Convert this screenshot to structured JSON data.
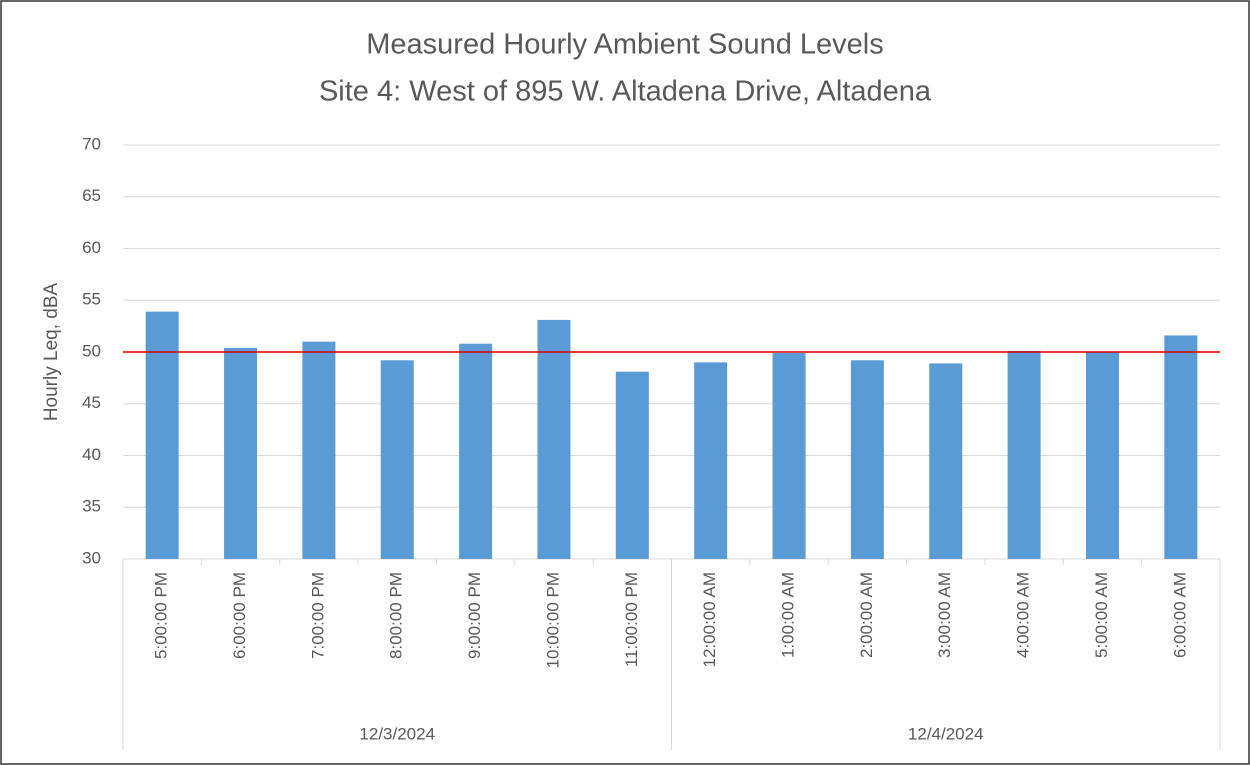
{
  "chart_data": {
    "type": "bar",
    "title": "Measured Hourly Ambient Sound Levels",
    "subtitle": "Site 4: West of 895 W. Altadena Drive, Altadena",
    "y_label": "Hourly Leq, dBA",
    "groups": [
      {
        "label": "12/3/2024",
        "categories": [
          "5:00:00 PM",
          "6:00:00 PM",
          "7:00:00 PM",
          "8:00:00 PM",
          "9:00:00 PM",
          "10:00:00 PM",
          "11:00:00 PM"
        ],
        "values": [
          53.9,
          50.4,
          51.0,
          49.2,
          50.8,
          53.1,
          48.1
        ]
      },
      {
        "label": "12/4/2024",
        "categories": [
          "12:00:00 AM",
          "1:00:00 AM",
          "2:00:00 AM",
          "3:00:00 AM",
          "4:00:00 AM",
          "5:00:00 AM",
          "6:00:00 AM"
        ],
        "values": [
          49.0,
          49.9,
          49.2,
          48.9,
          50.1,
          50.0,
          51.6
        ]
      }
    ],
    "color": "#5b9bd5",
    "reference_line": {
      "value": 50,
      "color": "#e00000"
    },
    "ylim": [
      30,
      70
    ],
    "yticks": [
      30,
      35,
      40,
      45,
      50,
      55,
      60,
      65,
      70
    ],
    "grid": true
  }
}
